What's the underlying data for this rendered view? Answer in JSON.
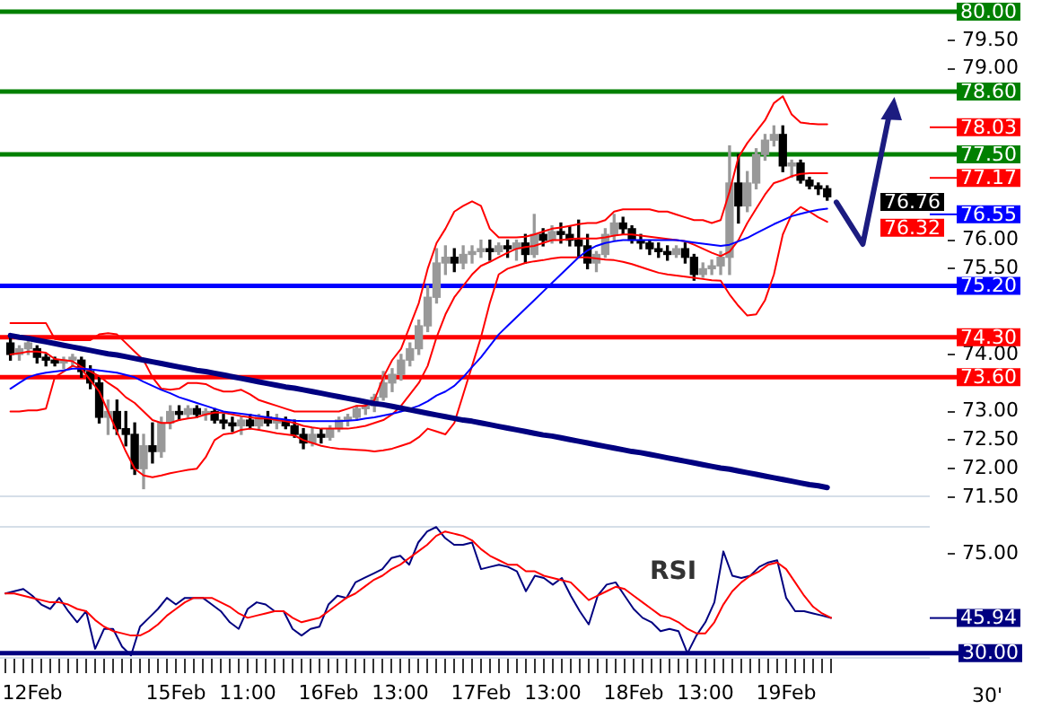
{
  "chart_data": [
    {
      "type": "candlestick",
      "categories": [
        null,
        null,
        null,
        null,
        null,
        null,
        null,
        null,
        null,
        null,
        null,
        null,
        null,
        null,
        null,
        null,
        null,
        null,
        null,
        null,
        null,
        null,
        null,
        null,
        null,
        null,
        null,
        null,
        null,
        null,
        null,
        null,
        null,
        null,
        null,
        null,
        null,
        null,
        null,
        null,
        null,
        null,
        null,
        null,
        null,
        null,
        null,
        null,
        null,
        null,
        null,
        null,
        null,
        null,
        null,
        null,
        null,
        null,
        null,
        null,
        null,
        null,
        null,
        null,
        null,
        null,
        null,
        null,
        null,
        null,
        null,
        null,
        null,
        null,
        null,
        null,
        null,
        null,
        null,
        null,
        null,
        null,
        null,
        null,
        null,
        null,
        null,
        null,
        null,
        null,
        null,
        null,
        null
      ],
      "ohlc": [
        [
          74.2,
          74.35,
          73.9,
          74.0
        ],
        [
          74.0,
          74.15,
          73.9,
          74.1
        ],
        [
          74.1,
          74.25,
          74.0,
          74.2
        ],
        [
          74.1,
          74.15,
          73.85,
          73.95
        ],
        [
          73.95,
          74.0,
          73.8,
          73.9
        ],
        [
          73.9,
          73.95,
          73.8,
          73.85
        ],
        [
          73.85,
          73.95,
          73.75,
          73.9
        ],
        [
          73.9,
          74.0,
          73.8,
          73.95
        ],
        [
          73.9,
          73.95,
          73.6,
          73.7
        ],
        [
          73.7,
          73.8,
          73.4,
          73.5
        ],
        [
          73.5,
          73.6,
          72.8,
          72.9
        ],
        [
          72.9,
          73.2,
          72.6,
          73.0
        ],
        [
          73.0,
          73.2,
          72.6,
          72.7
        ],
        [
          72.7,
          73.0,
          72.4,
          72.6
        ],
        [
          72.6,
          72.8,
          71.9,
          72.0
        ],
        [
          72.0,
          72.6,
          71.65,
          72.4
        ],
        [
          72.4,
          72.8,
          72.1,
          72.3
        ],
        [
          72.3,
          72.9,
          72.2,
          72.8
        ],
        [
          72.8,
          73.1,
          72.7,
          73.0
        ],
        [
          73.0,
          73.1,
          72.85,
          72.95
        ],
        [
          72.95,
          73.1,
          72.9,
          73.05
        ],
        [
          73.05,
          73.1,
          72.9,
          72.95
        ],
        [
          72.95,
          73.05,
          72.85,
          73.0
        ],
        [
          73.0,
          73.05,
          72.8,
          72.85
        ],
        [
          72.85,
          72.95,
          72.7,
          72.8
        ],
        [
          72.8,
          72.9,
          72.65,
          72.75
        ],
        [
          72.75,
          72.9,
          72.6,
          72.85
        ],
        [
          72.85,
          72.95,
          72.7,
          72.75
        ],
        [
          72.75,
          72.95,
          72.7,
          72.9
        ],
        [
          72.9,
          73.0,
          72.75,
          72.8
        ],
        [
          72.8,
          72.95,
          72.7,
          72.85
        ],
        [
          72.85,
          72.9,
          72.7,
          72.75
        ],
        [
          72.75,
          72.85,
          72.55,
          72.6
        ],
        [
          72.6,
          72.7,
          72.35,
          72.45
        ],
        [
          72.45,
          72.7,
          72.4,
          72.6
        ],
        [
          72.6,
          72.7,
          72.45,
          72.55
        ],
        [
          72.55,
          72.75,
          72.5,
          72.7
        ],
        [
          72.7,
          72.9,
          72.65,
          72.85
        ],
        [
          72.85,
          72.95,
          72.75,
          72.9
        ],
        [
          72.9,
          73.1,
          72.85,
          73.05
        ],
        [
          73.05,
          73.15,
          72.95,
          73.1
        ],
        [
          73.1,
          73.3,
          73.0,
          73.25
        ],
        [
          73.25,
          73.7,
          73.2,
          73.5
        ],
        [
          73.5,
          73.75,
          73.35,
          73.65
        ],
        [
          73.65,
          74.0,
          73.55,
          73.9
        ],
        [
          73.9,
          74.2,
          73.8,
          74.1
        ],
        [
          74.1,
          74.6,
          74.0,
          74.5
        ],
        [
          74.5,
          75.2,
          74.4,
          75.0
        ],
        [
          75.0,
          75.85,
          74.9,
          75.6
        ],
        [
          75.6,
          75.9,
          75.4,
          75.7
        ],
        [
          75.7,
          75.85,
          75.45,
          75.6
        ],
        [
          75.6,
          75.9,
          75.5,
          75.75
        ],
        [
          75.75,
          75.9,
          75.6,
          75.8
        ],
        [
          75.8,
          76.0,
          75.7,
          75.85
        ],
        [
          75.85,
          76.0,
          75.65,
          75.8
        ],
        [
          75.8,
          75.95,
          75.75,
          75.9
        ],
        [
          75.9,
          76.0,
          75.7,
          75.85
        ],
        [
          75.85,
          76.0,
          75.65,
          75.95
        ],
        [
          75.95,
          76.1,
          75.6,
          75.75
        ],
        [
          75.75,
          76.45,
          75.7,
          76.1
        ],
        [
          76.1,
          76.2,
          75.9,
          76.0
        ],
        [
          76.0,
          76.25,
          75.95,
          76.15
        ],
        [
          76.15,
          76.3,
          75.95,
          76.1
        ],
        [
          76.1,
          76.25,
          75.9,
          76.0
        ],
        [
          76.0,
          76.35,
          75.7,
          75.9
        ],
        [
          75.9,
          76.1,
          75.5,
          75.6
        ],
        [
          75.6,
          75.8,
          75.45,
          75.75
        ],
        [
          75.75,
          76.2,
          75.7,
          76.1
        ],
        [
          76.1,
          76.45,
          76.0,
          76.3
        ],
        [
          76.3,
          76.4,
          76.1,
          76.2
        ],
        [
          76.2,
          76.25,
          75.95,
          76.0
        ],
        [
          76.0,
          76.1,
          75.85,
          75.95
        ],
        [
          75.95,
          76.0,
          75.75,
          75.85
        ],
        [
          75.85,
          75.95,
          75.7,
          75.8
        ],
        [
          75.8,
          75.9,
          75.65,
          75.75
        ],
        [
          75.75,
          75.9,
          75.7,
          75.85
        ],
        [
          75.85,
          75.95,
          75.6,
          75.7
        ],
        [
          75.7,
          75.75,
          75.3,
          75.4
        ],
        [
          75.4,
          75.6,
          75.35,
          75.5
        ],
        [
          75.5,
          75.65,
          75.4,
          75.55
        ],
        [
          75.55,
          75.8,
          75.4,
          75.7
        ],
        [
          75.7,
          77.65,
          75.4,
          77.0
        ],
        [
          77.0,
          77.5,
          76.3,
          76.6
        ],
        [
          76.6,
          77.2,
          76.5,
          77.0
        ],
        [
          77.0,
          77.6,
          76.9,
          77.5
        ],
        [
          77.5,
          77.85,
          77.4,
          77.75
        ],
        [
          77.75,
          78.0,
          77.65,
          77.85
        ],
        [
          77.85,
          78.0,
          77.2,
          77.3
        ],
        [
          77.3,
          77.4,
          77.1,
          77.35
        ],
        [
          77.35,
          77.4,
          77.0,
          77.05
        ],
        [
          77.05,
          77.1,
          76.9,
          76.95
        ],
        [
          76.95,
          77.0,
          76.8,
          76.9
        ],
        [
          76.9,
          76.95,
          76.7,
          76.76
        ]
      ],
      "colors": [
        "#000000",
        "#999999",
        "#999999",
        "#000000",
        "#000000",
        "#000000",
        "#999999",
        "#999999",
        "#000000",
        "#000000",
        "#000000",
        "#999999",
        "#000000",
        "#000000",
        "#000000",
        "#999999",
        "#000000",
        "#999999",
        "#999999",
        "#000000",
        "#999999",
        "#000000",
        "#999999",
        "#000000",
        "#000000",
        "#000000",
        "#999999",
        "#000000",
        "#999999",
        "#000000",
        "#999999",
        "#000000",
        "#000000",
        "#000000",
        "#999999",
        "#000000",
        "#999999",
        "#999999",
        "#999999",
        "#999999",
        "#999999",
        "#999999",
        "#999999",
        "#999999",
        "#999999",
        "#999999",
        "#999999",
        "#999999",
        "#999999",
        "#999999",
        "#000000",
        "#999999",
        "#999999",
        "#999999",
        "#000000",
        "#999999",
        "#000000",
        "#999999",
        "#000000",
        "#999999",
        "#000000",
        "#999999",
        "#000000",
        "#000000",
        "#000000",
        "#000000",
        "#999999",
        "#999999",
        "#999999",
        "#000000",
        "#000000",
        "#000000",
        "#000000",
        "#000000",
        "#000000",
        "#999999",
        "#000000",
        "#000000",
        "#999999",
        "#999999",
        "#999999",
        "#999999",
        "#000000",
        "#999999",
        "#999999",
        "#999999",
        "#999999",
        "#000000",
        "#999999",
        "#000000",
        "#000000",
        "#000000",
        "#000000"
      ],
      "series": [
        {
          "type": "line",
          "color": "#ff0000",
          "values": [
            74.55,
            74.55,
            74.55,
            74.55,
            74.55,
            74.27,
            74.25,
            74.25,
            74.25,
            74.25,
            74.35,
            74.37,
            74.35,
            74.2,
            74.05,
            73.9,
            73.6,
            73.4,
            73.38,
            73.4,
            73.5,
            73.5,
            73.48,
            73.4,
            73.35,
            73.35,
            73.38,
            73.3,
            73.2,
            73.15,
            73.1,
            73.05,
            73.0,
            73.0,
            73.0,
            73.0,
            73.0,
            73.0,
            73.05,
            73.1,
            73.1,
            73.2,
            73.6,
            73.9,
            74.1,
            74.5,
            74.9,
            75.5,
            75.95,
            76.2,
            76.5,
            76.6,
            76.68,
            76.6,
            76.2,
            76.05,
            76.05,
            76.05,
            76.06,
            76.1,
            76.15,
            76.2,
            76.22,
            76.25,
            76.28,
            76.3,
            76.3,
            76.35,
            76.5,
            76.54,
            76.54,
            76.54,
            76.54,
            76.5,
            76.5,
            76.45,
            76.4,
            76.35,
            76.35,
            76.3,
            76.35,
            76.85,
            77.45,
            77.7,
            77.9,
            78.1,
            78.4,
            78.52,
            78.2,
            78.06,
            78.04,
            78.03,
            78.03
          ]
        },
        {
          "type": "line",
          "color": "#ff0000",
          "values": [
            74.0,
            74.02,
            74.05,
            74.05,
            74.03,
            73.92,
            73.9,
            73.88,
            73.78,
            73.7,
            73.62,
            73.5,
            73.4,
            73.25,
            73.15,
            73.0,
            72.85,
            72.8,
            72.8,
            72.85,
            72.88,
            72.9,
            72.95,
            72.98,
            72.98,
            72.95,
            72.92,
            72.9,
            72.88,
            72.88,
            72.85,
            72.83,
            72.8,
            72.75,
            72.72,
            72.7,
            72.7,
            72.7,
            72.7,
            72.72,
            72.75,
            72.8,
            72.85,
            72.95,
            73.1,
            73.3,
            73.5,
            73.8,
            74.3,
            74.7,
            75.0,
            75.2,
            75.4,
            75.55,
            75.62,
            75.7,
            75.78,
            75.85,
            75.88,
            75.9,
            75.95,
            76.0,
            76.0,
            76.02,
            76.03,
            76.03,
            76.03,
            76.05,
            76.08,
            76.1,
            76.1,
            76.08,
            76.06,
            76.04,
            76.02,
            76.0,
            75.98,
            75.92,
            75.85,
            75.78,
            75.72,
            75.8,
            76.0,
            76.3,
            76.55,
            76.8,
            77.0,
            77.05,
            77.12,
            77.16,
            77.17,
            77.17,
            77.17
          ]
        },
        {
          "type": "line",
          "color": "#ff0000",
          "values": [
            73.0,
            73.0,
            73.02,
            73.02,
            73.05,
            73.6,
            73.7,
            73.8,
            73.75,
            73.55,
            73.35,
            73.0,
            72.65,
            72.3,
            72.0,
            71.88,
            71.85,
            71.88,
            71.92,
            71.95,
            71.98,
            72.0,
            72.2,
            72.5,
            72.6,
            72.62,
            72.68,
            72.7,
            72.68,
            72.65,
            72.62,
            72.6,
            72.58,
            72.5,
            72.45,
            72.4,
            72.37,
            72.35,
            72.34,
            72.33,
            72.32,
            72.3,
            72.32,
            72.35,
            72.4,
            72.45,
            72.55,
            72.7,
            72.65,
            72.6,
            72.8,
            73.3,
            73.8,
            74.3,
            74.9,
            75.4,
            75.5,
            75.55,
            75.6,
            75.63,
            75.65,
            75.68,
            75.7,
            75.7,
            75.7,
            75.7,
            75.68,
            75.66,
            75.65,
            75.62,
            75.58,
            75.53,
            75.48,
            75.43,
            75.4,
            75.38,
            75.36,
            75.34,
            75.32,
            75.3,
            75.29,
            75.05,
            74.85,
            74.68,
            74.7,
            74.95,
            75.4,
            76.1,
            76.45,
            76.58,
            76.5,
            76.4,
            76.32
          ]
        },
        {
          "type": "line",
          "color": "#0000ff",
          "values": [
            73.4,
            73.5,
            73.6,
            73.65,
            73.68,
            73.7,
            73.72,
            73.75,
            73.75,
            73.74,
            73.72,
            73.7,
            73.68,
            73.64,
            73.6,
            73.52,
            73.45,
            73.38,
            73.32,
            73.25,
            73.2,
            73.15,
            73.1,
            73.05,
            73.0,
            72.98,
            72.96,
            72.94,
            72.92,
            72.9,
            72.88,
            72.86,
            72.84,
            72.83,
            72.83,
            72.83,
            72.83,
            72.83,
            72.84,
            72.85,
            72.88,
            72.9,
            72.93,
            72.96,
            73.0,
            73.05,
            73.1,
            73.18,
            73.28,
            73.35,
            73.45,
            73.6,
            73.78,
            73.95,
            74.15,
            74.35,
            74.5,
            74.65,
            74.8,
            74.95,
            75.1,
            75.25,
            75.4,
            75.55,
            75.7,
            75.82,
            75.9,
            75.95,
            75.98,
            76.0,
            76.0,
            76.0,
            76.0,
            76.0,
            76.0,
            76.0,
            75.98,
            75.96,
            75.94,
            75.92,
            75.9,
            75.92,
            75.98,
            76.04,
            76.12,
            76.2,
            76.28,
            76.35,
            76.42,
            76.46,
            76.5,
            76.53,
            76.55
          ]
        },
        {
          "type": "line",
          "color": "#000080",
          "values": [
            74.33,
            74.3,
            74.28,
            74.25,
            74.22,
            74.19,
            74.16,
            74.13,
            74.1,
            74.07,
            74.04,
            74.01,
            73.99,
            73.96,
            73.93,
            73.9,
            73.87,
            73.84,
            73.81,
            73.78,
            73.75,
            73.72,
            73.7,
            73.67,
            73.64,
            73.61,
            73.58,
            73.55,
            73.52,
            73.49,
            73.46,
            73.43,
            73.41,
            73.38,
            73.35,
            73.32,
            73.29,
            73.26,
            73.23,
            73.2,
            73.17,
            73.14,
            73.12,
            73.09,
            73.06,
            73.03,
            73.0,
            72.97,
            72.94,
            72.91,
            72.88,
            72.85,
            72.83,
            72.8,
            72.77,
            72.74,
            72.71,
            72.68,
            72.65,
            72.62,
            72.59,
            72.57,
            72.54,
            72.51,
            72.48,
            72.45,
            72.42,
            72.39,
            72.36,
            72.33,
            72.3,
            72.28,
            72.25,
            72.22,
            72.19,
            72.16,
            72.13,
            72.1,
            72.07,
            72.04,
            72.01,
            71.99,
            71.96,
            71.93,
            71.9,
            71.87,
            71.84,
            71.81,
            71.78,
            71.75,
            71.72,
            71.7,
            71.67
          ]
        }
      ],
      "ylim": [
        71.5,
        80
      ],
      "yticks": [
        {
          "value": 71.5,
          "label": "71.50"
        },
        {
          "value": 72,
          "label": "72.00"
        },
        {
          "value": 72.5,
          "label": "72.50"
        },
        {
          "value": 73,
          "label": "73.00"
        },
        {
          "value": 74,
          "label": "74.00"
        },
        {
          "value": 75.5,
          "label": "75.50"
        },
        {
          "value": 76,
          "label": "76.00"
        },
        {
          "value": 79,
          "label": "79.00"
        },
        {
          "value": 79.5,
          "label": "79.50"
        }
      ],
      "tick_labels": "y",
      "ref_lines": [
        {
          "axis": "y",
          "value": 80,
          "label": "80.00",
          "color": "#008000"
        },
        {
          "axis": "y",
          "value": 78.6,
          "label": "78.60",
          "color": "#008000"
        },
        {
          "axis": "y",
          "value": 77.5,
          "label": "77.50",
          "color": "#008000"
        },
        {
          "axis": "y",
          "value": 75.2,
          "label": "75.20",
          "color": "#0000ff"
        },
        {
          "axis": "y",
          "value": 74.3,
          "label": "74.30",
          "color": "#ff0000"
        },
        {
          "axis": "y",
          "value": 73.6,
          "label": "73.60",
          "color": "#ff0000"
        }
      ],
      "annotations": [
        "78.03",
        "77.17",
        "76.76",
        "76.55",
        "76.32"
      ]
    },
    {
      "type": "line",
      "xlabel": "30'",
      "categories": [
        null,
        null,
        null,
        "12Feb",
        null,
        null,
        null,
        null,
        null,
        null,
        null,
        null,
        null,
        null,
        null,
        null,
        null,
        null,
        null,
        "15Feb",
        null,
        null,
        null,
        null,
        null,
        null,
        null,
        "11:00",
        null,
        null,
        null,
        null,
        null,
        null,
        null,
        null,
        "16Feb",
        null,
        null,
        null,
        null,
        null,
        null,
        null,
        "13:00",
        null,
        null,
        null,
        null,
        null,
        null,
        null,
        null,
        "17Feb",
        null,
        null,
        null,
        null,
        null,
        null,
        null,
        "13:00",
        null,
        null,
        null,
        null,
        null,
        null,
        null,
        null,
        "18Feb",
        null,
        null,
        null,
        null,
        null,
        null,
        null,
        "13:00",
        null,
        null,
        null,
        null,
        null,
        null,
        null,
        null,
        "19Feb",
        null,
        null,
        null,
        null,
        null
      ],
      "series": [
        {
          "color": "#000080",
          "values": [
            57,
            58,
            59,
            56,
            52,
            50,
            55,
            49,
            44,
            49,
            32,
            41,
            41,
            33,
            29,
            42,
            46,
            50,
            55,
            52,
            55,
            55,
            55,
            52,
            49,
            44,
            41,
            50,
            53,
            52,
            49,
            49,
            41,
            38,
            41,
            42,
            52,
            56,
            55,
            62,
            64,
            66,
            68,
            73,
            74,
            70,
            80,
            85,
            87,
            82,
            79,
            79,
            80,
            68,
            69,
            70,
            69,
            67,
            58,
            65,
            64,
            61,
            64,
            56,
            49,
            43,
            56,
            61,
            62,
            56,
            50,
            46,
            44,
            40,
            41,
            40,
            30,
            38,
            44,
            53,
            76,
            65,
            64,
            65,
            69,
            71,
            72,
            55,
            49,
            49,
            48,
            47,
            45.94
          ]
        },
        {
          "color": "#ff0000",
          "values": [
            57,
            57,
            56,
            55,
            54,
            53,
            53,
            52,
            50,
            49,
            45,
            42,
            40,
            39,
            38,
            38,
            40,
            43,
            47,
            50,
            53,
            55,
            55,
            55,
            53,
            51,
            48,
            46,
            47,
            48,
            49,
            49,
            46,
            44,
            45,
            46,
            49,
            52,
            55,
            57,
            60,
            63,
            65,
            68,
            70,
            73,
            76,
            79,
            83,
            85,
            84,
            83,
            81,
            77,
            74,
            72,
            70,
            70,
            67,
            67,
            65,
            64,
            63,
            62,
            58,
            54,
            56,
            58,
            60,
            59,
            56,
            53,
            50,
            47,
            46,
            44,
            41,
            39,
            39,
            44,
            52,
            58,
            62,
            65,
            67,
            70,
            71,
            68,
            62,
            56,
            51,
            48,
            46
          ]
        }
      ],
      "ylim": [
        27.5,
        87.5
      ],
      "yticks": [
        {
          "value": 30,
          "label": "30.00"
        },
        {
          "value": 75,
          "label": "75.00"
        }
      ],
      "ref_lines": [
        {
          "axis": "y",
          "value": 30,
          "color": "#000080"
        }
      ],
      "annotations": [
        "45.94",
        "RSI"
      ]
    }
  ]
}
